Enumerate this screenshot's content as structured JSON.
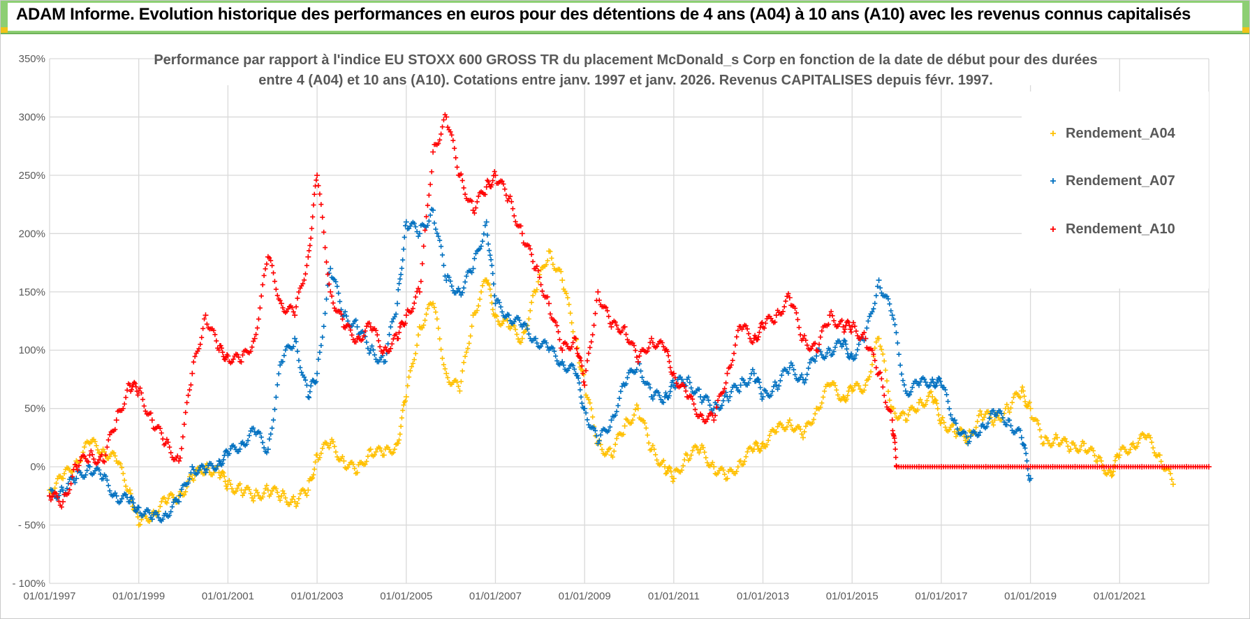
{
  "header": {
    "title": "ADAM Informe. Evolution historique des performances en euros pour des détentions de 4 ans (A04) à 10 ans (A10) avec les revenus connus capitalisés"
  },
  "colors": {
    "banner": "#8dcf73",
    "A04": "#ffc000",
    "A07": "#0070c0",
    "A10": "#ff0000",
    "grid": "#d9d9d9",
    "text": "#595959"
  },
  "chart_data": {
    "type": "scatter",
    "title": [
      "Performance par rapport à l'indice EU STOXX 600 GROSS TR  du placement McDonald_s Corp en fonction de la date de début pour des durées",
      "entre 4 (A04) et 10 ans (A10).  Cotations entre janv. 1997 et janv. 2026. Revenus CAPITALISES depuis févr. 1997."
    ],
    "xlabel": "",
    "ylabel": "",
    "xlim": [
      1997.0,
      2023.0
    ],
    "ylim": [
      -100,
      350
    ],
    "y_ticks": [
      "350%",
      "300%",
      "250%",
      "200%",
      "150%",
      "100%",
      "50%",
      "0%",
      "- 50%",
      "- 100%"
    ],
    "y_tick_values": [
      350,
      300,
      250,
      200,
      150,
      100,
      50,
      0,
      -50,
      -100
    ],
    "x_ticks": [
      "01/01/1997",
      "01/01/1999",
      "01/01/2001",
      "01/01/2003",
      "01/01/2005",
      "01/01/2007",
      "01/01/2009",
      "01/01/2011",
      "01/01/2013",
      "01/01/2015",
      "01/01/2017",
      "01/01/2019",
      "01/01/2021"
    ],
    "x_tick_values": [
      1997,
      1999,
      2001,
      2003,
      2005,
      2007,
      2009,
      2011,
      2013,
      2015,
      2017,
      2019,
      2021
    ],
    "legend": [
      "Rendement_A04",
      "Rendement_A07",
      "Rendement_A10"
    ],
    "legend_position": "top-right",
    "series": [
      {
        "name": "Rendement_A04",
        "x": [
          1997.0,
          1997.3,
          1997.6,
          1997.9,
          1998.2,
          1998.5,
          1998.8,
          1999.0,
          1999.3,
          1999.6,
          1999.9,
          2000.2,
          2000.5,
          2000.8,
          2001.0,
          2001.3,
          2001.6,
          2001.9,
          2002.2,
          2002.5,
          2002.8,
          2003.0,
          2003.3,
          2003.6,
          2003.9,
          2004.2,
          2004.5,
          2004.8,
          2005.0,
          2005.3,
          2005.6,
          2005.9,
          2006.2,
          2006.5,
          2006.8,
          2007.0,
          2007.3,
          2007.6,
          2007.9,
          2008.2,
          2008.5,
          2008.8,
          2009.0,
          2009.3,
          2009.6,
          2009.9,
          2010.2,
          2010.5,
          2010.8,
          2011.0,
          2011.3,
          2011.6,
          2011.9,
          2012.2,
          2012.5,
          2012.8,
          2013.0,
          2013.3,
          2013.6,
          2013.9,
          2014.2,
          2014.5,
          2014.8,
          2015.0,
          2015.3,
          2015.6,
          2015.9,
          2016.2,
          2016.5,
          2016.8,
          2017.0,
          2017.3,
          2017.6,
          2017.9,
          2018.2,
          2018.5,
          2018.8,
          2019.0,
          2019.3,
          2019.6,
          2019.9,
          2020.2,
          2020.5,
          2020.8,
          2021.0,
          2021.3,
          2021.6,
          2021.9,
          2022.2
        ],
        "values": [
          -20,
          -10,
          5,
          20,
          15,
          5,
          -20,
          -50,
          -40,
          -30,
          -25,
          -10,
          0,
          -5,
          -15,
          -20,
          -25,
          -20,
          -25,
          -30,
          -20,
          10,
          20,
          5,
          -5,
          15,
          10,
          20,
          60,
          120,
          140,
          80,
          65,
          130,
          160,
          130,
          120,
          110,
          150,
          185,
          160,
          110,
          70,
          20,
          10,
          35,
          50,
          15,
          0,
          -10,
          10,
          15,
          0,
          -10,
          5,
          15,
          20,
          30,
          40,
          25,
          50,
          70,
          60,
          65,
          70,
          110,
          50,
          40,
          55,
          60,
          40,
          30,
          25,
          45,
          40,
          50,
          65,
          50,
          20,
          25,
          15,
          20,
          5,
          -5,
          10,
          20,
          25,
          10,
          -15
        ]
      },
      {
        "name": "Rendement_A07",
        "x": [
          1997.0,
          1997.3,
          1997.6,
          1997.9,
          1998.2,
          1998.5,
          1998.8,
          1999.0,
          1999.3,
          1999.6,
          1999.9,
          2000.2,
          2000.5,
          2000.8,
          2001.0,
          2001.3,
          2001.6,
          2001.9,
          2002.2,
          2002.5,
          2002.8,
          2003.0,
          2003.3,
          2003.6,
          2003.9,
          2004.2,
          2004.5,
          2004.8,
          2005.0,
          2005.3,
          2005.6,
          2005.9,
          2006.2,
          2006.5,
          2006.8,
          2007.0,
          2007.3,
          2007.6,
          2007.9,
          2008.2,
          2008.5,
          2008.8,
          2009.0,
          2009.3,
          2009.6,
          2009.9,
          2010.2,
          2010.5,
          2010.8,
          2011.0,
          2011.3,
          2011.6,
          2011.9,
          2012.2,
          2012.5,
          2012.8,
          2013.0,
          2013.3,
          2013.6,
          2013.9,
          2014.2,
          2014.5,
          2014.8,
          2015.0,
          2015.3,
          2015.6,
          2015.9,
          2016.2,
          2016.5,
          2016.8,
          2017.0,
          2017.3,
          2017.6,
          2017.9,
          2018.2,
          2018.5,
          2018.8,
          2019.0
        ],
        "values": [
          -25,
          -20,
          -10,
          0,
          -10,
          -25,
          -30,
          -35,
          -45,
          -40,
          -30,
          0,
          -5,
          5,
          10,
          20,
          30,
          15,
          90,
          110,
          60,
          80,
          170,
          130,
          120,
          100,
          90,
          140,
          210,
          200,
          220,
          160,
          150,
          170,
          210,
          140,
          130,
          120,
          110,
          100,
          90,
          80,
          50,
          20,
          40,
          70,
          90,
          60,
          60,
          70,
          75,
          60,
          50,
          60,
          70,
          80,
          60,
          70,
          85,
          75,
          95,
          100,
          105,
          95,
          110,
          160,
          130,
          65,
          70,
          75,
          70,
          40,
          20,
          35,
          45,
          40,
          25,
          -10
        ]
      },
      {
        "name": "Rendement_A10",
        "x": [
          1997.0,
          1997.3,
          1997.6,
          1997.9,
          1998.2,
          1998.5,
          1998.8,
          1999.0,
          1999.3,
          1999.6,
          1999.9,
          2000.2,
          2000.5,
          2000.8,
          2001.0,
          2001.3,
          2001.6,
          2001.9,
          2002.2,
          2002.5,
          2002.8,
          2003.0,
          2003.3,
          2003.6,
          2003.9,
          2004.2,
          2004.5,
          2004.8,
          2005.0,
          2005.3,
          2005.6,
          2005.9,
          2006.2,
          2006.5,
          2006.8,
          2007.0,
          2007.3,
          2007.6,
          2007.9,
          2008.2,
          2008.5,
          2008.8,
          2009.0,
          2009.3,
          2009.6,
          2009.9,
          2010.2,
          2010.5,
          2010.8,
          2011.0,
          2011.3,
          2011.6,
          2011.9,
          2012.2,
          2012.5,
          2012.8,
          2013.0,
          2013.3,
          2013.6,
          2013.9,
          2014.2,
          2014.5,
          2014.8,
          2015.0,
          2015.3,
          2015.6,
          2015.9,
          2016.0,
          2016.5,
          2017.0,
          2017.5,
          2018.0,
          2018.5,
          2019.0,
          2019.5,
          2020.0,
          2020.5,
          2021.0,
          2021.5,
          2022.0,
          2022.5,
          2023.0
        ],
        "values": [
          -25,
          -30,
          0,
          10,
          5,
          40,
          70,
          65,
          40,
          20,
          5,
          80,
          130,
          100,
          95,
          90,
          110,
          180,
          140,
          130,
          180,
          250,
          150,
          120,
          110,
          120,
          100,
          110,
          130,
          150,
          270,
          300,
          250,
          220,
          240,
          250,
          230,
          200,
          170,
          140,
          100,
          110,
          70,
          150,
          120,
          120,
          90,
          110,
          100,
          80,
          60,
          45,
          40,
          80,
          120,
          110,
          120,
          130,
          145,
          110,
          100,
          130,
          120,
          120,
          110,
          80,
          40,
          0,
          0,
          0,
          0,
          0,
          0,
          0,
          0,
          0,
          0,
          0,
          0,
          0,
          0,
          0
        ]
      }
    ]
  }
}
